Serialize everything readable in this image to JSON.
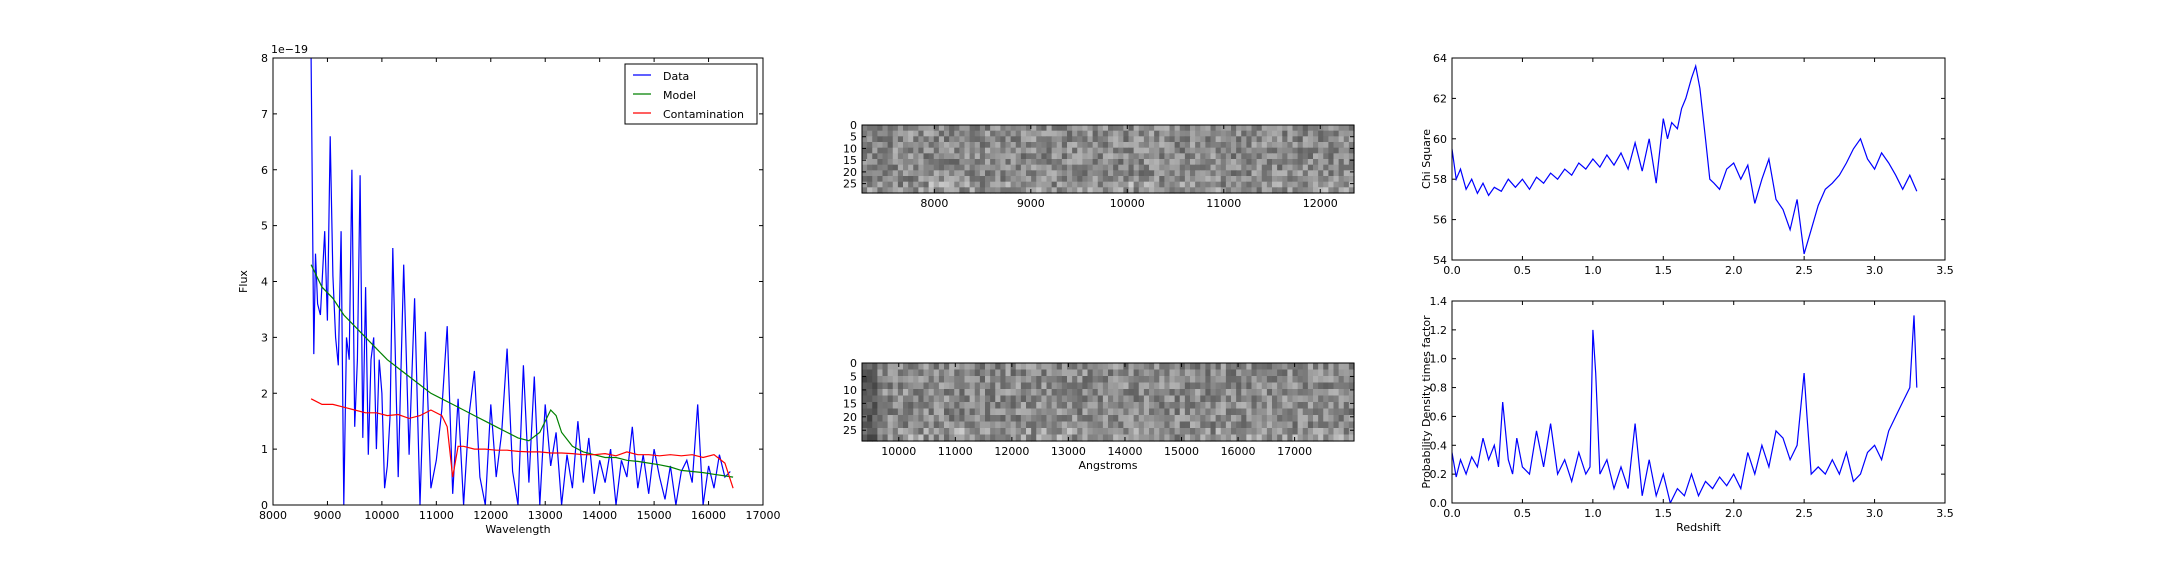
{
  "chart_data": [
    {
      "type": "line",
      "id": "spectrum",
      "xlabel": "Wavelength",
      "ylabel": "Flux",
      "offset_text": "1e−19",
      "xlim": [
        8000,
        17000
      ],
      "ylim": [
        0,
        8
      ],
      "xticks": [
        8000,
        9000,
        10000,
        11000,
        12000,
        13000,
        14000,
        15000,
        16000,
        17000
      ],
      "yticks": [
        0,
        1,
        2,
        3,
        4,
        5,
        6,
        7,
        8
      ],
      "legend": {
        "placement": "upper right",
        "entries": [
          "Data",
          "Model",
          "Contamination"
        ]
      },
      "series": [
        {
          "name": "Data",
          "color": "#0000ff",
          "x": [
            8700,
            8750,
            8780,
            8820,
            8870,
            8950,
            9000,
            9050,
            9100,
            9150,
            9200,
            9250,
            9300,
            9350,
            9400,
            9450,
            9500,
            9550,
            9600,
            9650,
            9700,
            9750,
            9800,
            9850,
            9900,
            9950,
            10000,
            10050,
            10100,
            10150,
            10200,
            10300,
            10400,
            10500,
            10600,
            10700,
            10800,
            10900,
            11000,
            11100,
            11200,
            11300,
            11400,
            11500,
            11600,
            11700,
            11800,
            11900,
            12000,
            12100,
            12200,
            12300,
            12400,
            12500,
            12600,
            12700,
            12800,
            12900,
            13000,
            13100,
            13200,
            13300,
            13400,
            13500,
            13600,
            13700,
            13800,
            13900,
            14000,
            14100,
            14200,
            14300,
            14400,
            14500,
            14600,
            14700,
            14800,
            14900,
            15000,
            15100,
            15200,
            15300,
            15400,
            15500,
            15600,
            15700,
            15800,
            15900,
            16000,
            16100,
            16200,
            16300,
            16400
          ],
          "y": [
            8.0,
            2.7,
            4.5,
            3.6,
            3.4,
            4.9,
            3.3,
            6.6,
            4.1,
            3.0,
            2.5,
            4.9,
            0.0,
            3.0,
            2.6,
            6.0,
            1.4,
            2.6,
            5.9,
            1.2,
            3.9,
            0.9,
            2.6,
            3.0,
            1.0,
            2.6,
            2.0,
            0.3,
            0.7,
            1.6,
            4.6,
            0.5,
            4.3,
            0.9,
            3.7,
            0.0,
            3.1,
            0.3,
            0.8,
            1.7,
            3.2,
            0.2,
            1.9,
            0.0,
            1.6,
            2.4,
            0.5,
            0.0,
            1.8,
            0.5,
            1.3,
            2.8,
            0.6,
            0.0,
            2.5,
            0.4,
            2.3,
            0.0,
            1.8,
            0.7,
            1.3,
            0.0,
            0.9,
            0.3,
            1.5,
            0.4,
            1.2,
            0.2,
            0.8,
            0.4,
            1.0,
            0.0,
            0.8,
            0.5,
            1.4,
            0.3,
            0.9,
            0.2,
            1.0,
            0.5,
            0.1,
            0.7,
            0.0,
            0.6,
            0.8,
            0.4,
            1.8,
            0.0,
            0.7,
            0.3,
            0.9,
            0.5,
            0.6
          ],
          "y_note": "axis values in units of 1e-19"
        },
        {
          "name": "Model",
          "color": "#008000",
          "x": [
            8700,
            8900,
            9100,
            9300,
            9500,
            9700,
            9900,
            10100,
            10300,
            10500,
            10700,
            10900,
            11100,
            11300,
            11500,
            11700,
            11900,
            12100,
            12300,
            12500,
            12700,
            12900,
            13000,
            13100,
            13200,
            13300,
            13500,
            13700,
            13900,
            14100,
            14300,
            14500,
            14700,
            14900,
            15100,
            15300,
            15500,
            15700,
            15900,
            16100,
            16300,
            16450
          ],
          "y": [
            4.3,
            3.9,
            3.7,
            3.4,
            3.2,
            3.0,
            2.8,
            2.6,
            2.45,
            2.3,
            2.15,
            2.0,
            1.9,
            1.8,
            1.7,
            1.6,
            1.5,
            1.4,
            1.3,
            1.2,
            1.15,
            1.3,
            1.5,
            1.7,
            1.6,
            1.3,
            1.05,
            0.95,
            0.9,
            0.85,
            0.85,
            0.8,
            0.78,
            0.75,
            0.72,
            0.68,
            0.62,
            0.6,
            0.58,
            0.55,
            0.52,
            0.5
          ]
        },
        {
          "name": "Contamination",
          "color": "#ff0000",
          "x": [
            8700,
            8900,
            9100,
            9300,
            9500,
            9700,
            9900,
            10100,
            10300,
            10500,
            10700,
            10900,
            11100,
            11200,
            11300,
            11400,
            11500,
            11700,
            11900,
            12100,
            12300,
            12500,
            12700,
            12900,
            13100,
            13300,
            13500,
            13700,
            13900,
            14100,
            14300,
            14500,
            14700,
            14900,
            15100,
            15300,
            15500,
            15700,
            15900,
            16100,
            16300,
            16450
          ],
          "y": [
            1.9,
            1.8,
            1.8,
            1.75,
            1.7,
            1.65,
            1.65,
            1.6,
            1.62,
            1.55,
            1.6,
            1.7,
            1.6,
            1.4,
            0.5,
            1.05,
            1.05,
            1.0,
            1.0,
            0.98,
            0.98,
            0.96,
            0.95,
            0.95,
            0.93,
            0.93,
            0.92,
            0.9,
            0.9,
            0.92,
            0.88,
            0.95,
            0.9,
            0.9,
            0.88,
            0.9,
            0.88,
            0.9,
            0.85,
            0.9,
            0.75,
            0.3
          ]
        }
      ]
    },
    {
      "type": "heatmap",
      "id": "image-top",
      "xlim": [
        7250,
        12350
      ],
      "ylim": [
        0,
        29
      ],
      "xticks": [
        8000,
        9000,
        10000,
        11000,
        12000
      ],
      "yticks": [
        0,
        5,
        10,
        15,
        20,
        25
      ],
      "colormap": "gray",
      "description_values": "2D spectrum cutout (noise-dominated grayscale)"
    },
    {
      "type": "heatmap",
      "id": "image-bottom",
      "xlabel": "Angstroms",
      "xlim": [
        9350,
        18050
      ],
      "ylim": [
        0,
        29
      ],
      "xticks": [
        10000,
        11000,
        12000,
        13000,
        14000,
        15000,
        16000,
        17000
      ],
      "yticks": [
        0,
        5,
        10,
        15,
        20,
        25
      ],
      "colormap": "gray"
    },
    {
      "type": "line",
      "id": "chi-square",
      "ylabel": "Chi Square",
      "xlim": [
        0.0,
        3.5
      ],
      "ylim": [
        54,
        64
      ],
      "xticks": [
        0.0,
        0.5,
        1.0,
        1.5,
        2.0,
        2.5,
        3.0,
        3.5
      ],
      "yticks": [
        54,
        56,
        58,
        60,
        62,
        64
      ],
      "series": [
        {
          "name": "",
          "color": "#0000ff",
          "x": [
            0.0,
            0.03,
            0.06,
            0.1,
            0.14,
            0.18,
            0.22,
            0.26,
            0.3,
            0.35,
            0.4,
            0.45,
            0.5,
            0.55,
            0.6,
            0.65,
            0.7,
            0.75,
            0.8,
            0.85,
            0.9,
            0.95,
            1.0,
            1.05,
            1.1,
            1.15,
            1.2,
            1.25,
            1.3,
            1.35,
            1.4,
            1.45,
            1.5,
            1.53,
            1.56,
            1.6,
            1.63,
            1.66,
            1.7,
            1.73,
            1.76,
            1.8,
            1.83,
            1.86,
            1.9,
            1.95,
            2.0,
            2.05,
            2.1,
            2.15,
            2.2,
            2.25,
            2.3,
            2.35,
            2.4,
            2.45,
            2.5,
            2.55,
            2.6,
            2.65,
            2.7,
            2.75,
            2.8,
            2.85,
            2.9,
            2.95,
            3.0,
            3.05,
            3.1,
            3.15,
            3.2,
            3.25,
            3.3
          ],
          "y": [
            59.5,
            58.0,
            58.5,
            57.5,
            58.0,
            57.3,
            57.8,
            57.2,
            57.6,
            57.4,
            58.0,
            57.6,
            58.0,
            57.5,
            58.1,
            57.8,
            58.3,
            58.0,
            58.5,
            58.2,
            58.8,
            58.5,
            59.0,
            58.6,
            59.2,
            58.7,
            59.3,
            58.5,
            59.8,
            58.4,
            60.0,
            57.8,
            61.0,
            60.0,
            60.8,
            60.5,
            61.5,
            62.0,
            63.0,
            63.6,
            62.5,
            60.0,
            58.0,
            57.8,
            57.5,
            58.5,
            58.8,
            58.0,
            58.7,
            56.8,
            58.0,
            59.0,
            57.0,
            56.5,
            55.5,
            57.0,
            54.3,
            55.5,
            56.7,
            57.5,
            57.8,
            58.2,
            58.8,
            59.5,
            60.0,
            59.0,
            58.5,
            59.3,
            58.8,
            58.2,
            57.5,
            58.2,
            57.4
          ]
        }
      ]
    },
    {
      "type": "line",
      "id": "probability",
      "xlabel": "Redshift",
      "ylabel": "Probability Density times factor",
      "xlim": [
        0.0,
        3.5
      ],
      "ylim": [
        0.0,
        1.4
      ],
      "xticks": [
        0.0,
        0.5,
        1.0,
        1.5,
        2.0,
        2.5,
        3.0,
        3.5
      ],
      "yticks": [
        0.0,
        0.2,
        0.4,
        0.6,
        0.8,
        1.0,
        1.2,
        1.4
      ],
      "series": [
        {
          "name": "",
          "color": "#0000ff",
          "x": [
            0.0,
            0.03,
            0.06,
            0.1,
            0.14,
            0.18,
            0.22,
            0.26,
            0.3,
            0.33,
            0.36,
            0.4,
            0.43,
            0.46,
            0.5,
            0.55,
            0.6,
            0.65,
            0.7,
            0.75,
            0.8,
            0.85,
            0.9,
            0.95,
            0.98,
            1.0,
            1.02,
            1.05,
            1.1,
            1.15,
            1.2,
            1.25,
            1.3,
            1.35,
            1.4,
            1.45,
            1.5,
            1.55,
            1.6,
            1.65,
            1.7,
            1.75,
            1.8,
            1.85,
            1.9,
            1.95,
            2.0,
            2.05,
            2.1,
            2.15,
            2.2,
            2.25,
            2.3,
            2.35,
            2.4,
            2.45,
            2.5,
            2.52,
            2.55,
            2.6,
            2.65,
            2.7,
            2.75,
            2.8,
            2.85,
            2.9,
            2.95,
            3.0,
            3.05,
            3.1,
            3.15,
            3.2,
            3.25,
            3.28,
            3.3
          ],
          "y": [
            0.35,
            0.18,
            0.3,
            0.2,
            0.32,
            0.25,
            0.45,
            0.3,
            0.4,
            0.25,
            0.7,
            0.3,
            0.2,
            0.45,
            0.25,
            0.2,
            0.5,
            0.25,
            0.55,
            0.2,
            0.3,
            0.15,
            0.35,
            0.2,
            0.25,
            1.2,
            0.9,
            0.2,
            0.3,
            0.1,
            0.25,
            0.1,
            0.55,
            0.05,
            0.3,
            0.05,
            0.2,
            0.0,
            0.1,
            0.05,
            0.2,
            0.05,
            0.15,
            0.1,
            0.18,
            0.12,
            0.2,
            0.1,
            0.35,
            0.2,
            0.4,
            0.25,
            0.5,
            0.45,
            0.3,
            0.4,
            0.9,
            0.6,
            0.2,
            0.25,
            0.2,
            0.3,
            0.2,
            0.35,
            0.15,
            0.2,
            0.35,
            0.4,
            0.3,
            0.5,
            0.6,
            0.7,
            0.8,
            1.3,
            0.8
          ]
        }
      ]
    }
  ]
}
